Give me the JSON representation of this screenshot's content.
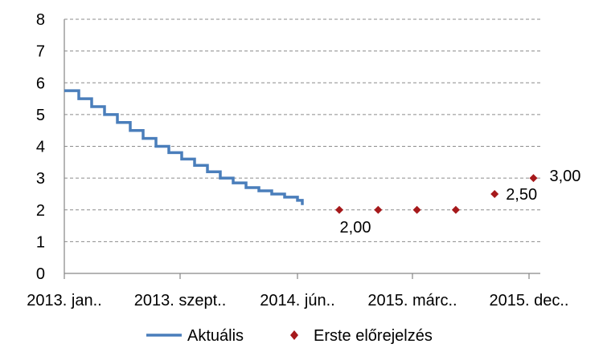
{
  "chart_data": {
    "type": "line",
    "ylim": [
      0,
      8
    ],
    "y_ticks": [
      "0",
      "1",
      "2",
      "3",
      "4",
      "5",
      "6",
      "7",
      "8"
    ],
    "x_tick_labels": [
      "2013. jan..",
      "2013. szept..",
      "2014. jún..",
      "2015. márc..",
      "2015. dec.."
    ],
    "grid": "horizontal dashed",
    "legend_position": "bottom",
    "series": [
      {
        "name": "Aktuális",
        "kind": "step-line",
        "color": "#4a7ebb",
        "x": [
          "2013-01",
          "2013-02",
          "2013-03",
          "2013-04",
          "2013-05",
          "2013-06",
          "2013-07",
          "2013-08",
          "2013-09",
          "2013-10",
          "2013-11",
          "2013-12",
          "2014-01",
          "2014-02",
          "2014-03",
          "2014-04",
          "2014-05",
          "2014-06",
          "2014-07"
        ],
        "values": [
          5.75,
          5.5,
          5.25,
          5.0,
          4.75,
          4.5,
          4.25,
          4.0,
          3.8,
          3.6,
          3.4,
          3.2,
          3.0,
          2.85,
          2.7,
          2.6,
          2.5,
          2.4,
          2.3
        ]
      },
      {
        "name": "Erste előrejelzés",
        "kind": "markers",
        "color": "#a6191b",
        "x": [
          "2014-09",
          "2014-12",
          "2015-03",
          "2015-06",
          "2015-09",
          "2015-12"
        ],
        "values": [
          2.0,
          2.0,
          2.0,
          2.0,
          2.5,
          3.0
        ],
        "data_labels": [
          "2,00",
          "",
          "",
          "",
          "2,50",
          "3,00"
        ]
      }
    ]
  }
}
